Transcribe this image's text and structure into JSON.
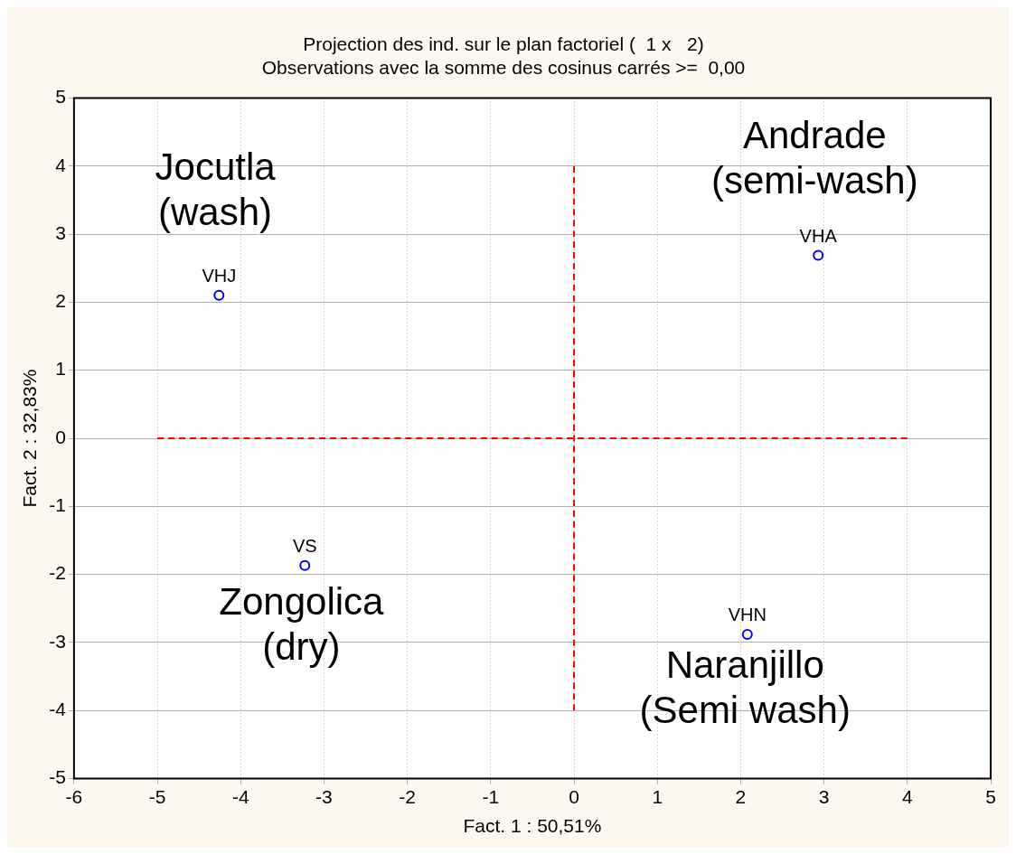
{
  "chart_data": {
    "type": "scatter",
    "title": "Projection des ind. sur le plan factoriel (  1 x   2)",
    "subtitle": "Observations avec la somme des cosinus carrés >=  0,00",
    "xlabel": "Fact. 1 : 50,51%",
    "ylabel": "Fact. 2 : 32,83%",
    "series": [
      {
        "type": "scatter",
        "color": "#0000ff",
        "x": [
          -4.26,
          -3.23,
          2.08,
          2.93
        ],
        "values": [
          2.1,
          -1.87,
          -2.88,
          2.69
        ],
        "value_labels": [
          "VHJ",
          "VS",
          "VHN",
          "VHA"
        ],
        "marker": "circle"
      },
      {
        "type": "line",
        "color": "#ff0000",
        "x": [
          -5,
          4
        ],
        "values": [
          0,
          0
        ],
        "line_style": "dashed",
        "marker": "none"
      },
      {
        "type": "line",
        "color": "#ff0000",
        "x": [
          0,
          0
        ],
        "values": [
          -4,
          4
        ],
        "line_style": "dashed",
        "marker": "none"
      }
    ],
    "xlim": [
      -6,
      5
    ],
    "xticks": [
      -6,
      -5,
      -4,
      -3,
      -2,
      -1,
      0,
      1,
      2,
      3,
      4,
      5
    ],
    "ylim": [
      -5,
      5
    ],
    "yticks": [
      -5,
      -4,
      -3,
      -2,
      -1,
      0,
      1,
      2,
      3,
      4,
      5
    ],
    "grid": true,
    "legend": false,
    "annotations": [
      "Jocutla\n(wash)",
      "Andrade\n(semi-wash)",
      "Zongolica\n(dry)",
      "Naranjillo\n(Semi wash)"
    ]
  }
}
